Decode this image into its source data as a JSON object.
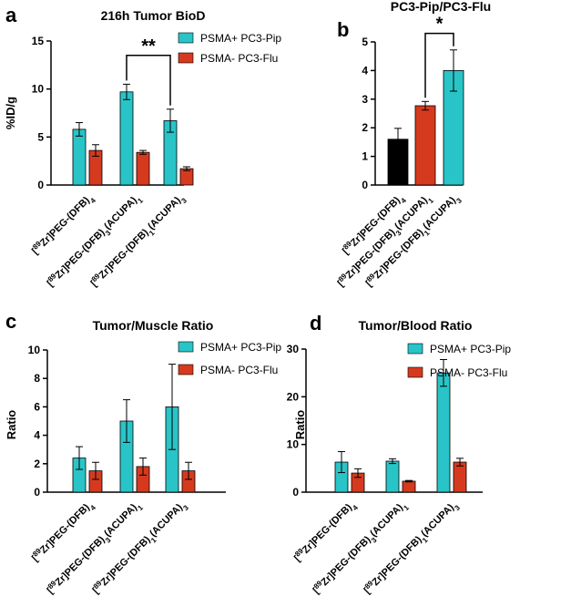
{
  "colors": {
    "psma_pos": "#29c4c7",
    "psma_neg": "#d63a1e",
    "black": "#000000"
  },
  "chart_data": [
    {
      "panel": "a",
      "type": "bar",
      "title": "216h Tumor BioD",
      "ylabel": "%ID/g",
      "ylim": [
        0,
        15
      ],
      "yticks": [
        "0",
        "5",
        "10",
        "15"
      ],
      "categories": [
        {
          "pre": "[",
          "s1": "89",
          "m1": "Zr]PEG-(DFB)",
          "s2": "4",
          "m2": "",
          "s3": "",
          "m3": ""
        },
        {
          "pre": "[",
          "s1": "89",
          "m1": "Zr]PEG-(DFB)",
          "s2": "3",
          "m2": "(ACUPA)",
          "s3": "1",
          "m3": ""
        },
        {
          "pre": "[",
          "s1": "89",
          "m1": "Zr]PEG-(DFB)",
          "s2": "1",
          "m2": "(ACUPA)",
          "s3": "3",
          "m3": ""
        }
      ],
      "series": [
        {
          "name": "PSMA+ PC3-Pip",
          "color_key": "psma_pos",
          "values": [
            5.8,
            9.7,
            6.7
          ],
          "errors": [
            0.7,
            0.8,
            1.2
          ]
        },
        {
          "name": "PSMA- PC3-Flu",
          "color_key": "psma_neg",
          "values": [
            3.6,
            3.4,
            1.7
          ],
          "errors": [
            0.6,
            0.2,
            0.2
          ]
        }
      ],
      "significance": [
        {
          "label": "**",
          "from": 1,
          "to": 2,
          "series": 0,
          "level": 13.5
        }
      ]
    },
    {
      "panel": "b",
      "type": "bar",
      "title": "PC3-Pip/PC3-Flu",
      "ylabel": "",
      "ylim": [
        0,
        5
      ],
      "yticks": [
        "0",
        "1",
        "2",
        "3",
        "4",
        "5"
      ],
      "categories": [
        {
          "pre": "[",
          "s1": "89",
          "m1": "Zr]PEG-(DFB)",
          "s2": "4",
          "m2": "",
          "s3": "",
          "m3": ""
        },
        {
          "pre": "[",
          "s1": "89",
          "m1": "Zr]PEG-(DFB)",
          "s2": "3",
          "m2": "(ACUPA)",
          "s3": "1",
          "m3": ""
        },
        {
          "pre": "[",
          "s1": "89",
          "m1": "Zr]PEG-(DFB)",
          "s2": "1",
          "m2": "(ACUPA)",
          "s3": "3",
          "m3": ""
        }
      ],
      "series": [
        {
          "name": "PC3-Pip/PC3-Flu",
          "values": [
            1.6,
            2.77,
            4.0
          ],
          "errors": [
            0.38,
            0.15,
            0.72
          ],
          "color_keys": [
            "black",
            "psma_neg",
            "psma_pos"
          ]
        }
      ],
      "significance": [
        {
          "label": "*",
          "from": 1,
          "to": 2,
          "series": 0,
          "level": 5.3
        }
      ]
    },
    {
      "panel": "c",
      "type": "bar",
      "title": "Tumor/Muscle Ratio",
      "ylabel": "Ratio",
      "ylim": [
        0,
        10
      ],
      "yticks": [
        "0",
        "2",
        "4",
        "6",
        "8",
        "10"
      ],
      "categories": [
        {
          "pre": "[",
          "s1": "89",
          "m1": "Zr]PEG-(DFB)",
          "s2": "4",
          "m2": "",
          "s3": "",
          "m3": ""
        },
        {
          "pre": "[",
          "s1": "89",
          "m1": "Zr]PEG-(DFB)",
          "s2": "3",
          "m2": "(ACUPA)",
          "s3": "1",
          "m3": ""
        },
        {
          "pre": "[",
          "s1": "89",
          "m1": "Zr]PEG-(DFB)",
          "s2": "1",
          "m2": "(ACUPA)",
          "s3": "3",
          "m3": ""
        }
      ],
      "series": [
        {
          "name": "PSMA+ PC3-Pip",
          "color_key": "psma_pos",
          "values": [
            2.4,
            5.0,
            6.0
          ],
          "errors": [
            0.8,
            1.5,
            3.0
          ]
        },
        {
          "name": "PSMA-  PC3-Flu",
          "color_key": "psma_neg",
          "values": [
            1.5,
            1.8,
            1.5
          ],
          "errors": [
            0.6,
            0.6,
            0.6
          ]
        }
      ],
      "significance": []
    },
    {
      "panel": "d",
      "type": "bar",
      "title": "Tumor/Blood Ratio",
      "ylabel": "Ratio",
      "ylim": [
        0,
        30
      ],
      "yticks": [
        "0",
        "10",
        "20",
        "30"
      ],
      "categories": [
        {
          "pre": "[",
          "s1": "89",
          "m1": "Zr]PEG-(DFB)",
          "s2": "4",
          "m2": "",
          "s3": "",
          "m3": ""
        },
        {
          "pre": "[",
          "s1": "89",
          "m1": "Zr]PEG-(DFB)",
          "s2": "3",
          "m2": "(ACUPA)",
          "s3": "1",
          "m3": ""
        },
        {
          "pre": "[",
          "s1": "89",
          "m1": "Zr]PEG-(DFB)",
          "s2": "1",
          "m2": "(ACUPA)",
          "s3": "3",
          "m3": ""
        }
      ],
      "series": [
        {
          "name": "PSMA+ PC3-Pip",
          "color_key": "psma_pos",
          "values": [
            6.3,
            6.5,
            25.0
          ],
          "errors": [
            2.2,
            0.5,
            2.8
          ]
        },
        {
          "name": "PSMA-  PC3-Flu",
          "color_key": "psma_neg",
          "values": [
            4.0,
            2.3,
            6.3
          ],
          "errors": [
            0.9,
            0.15,
            0.8
          ]
        }
      ],
      "significance": []
    }
  ]
}
